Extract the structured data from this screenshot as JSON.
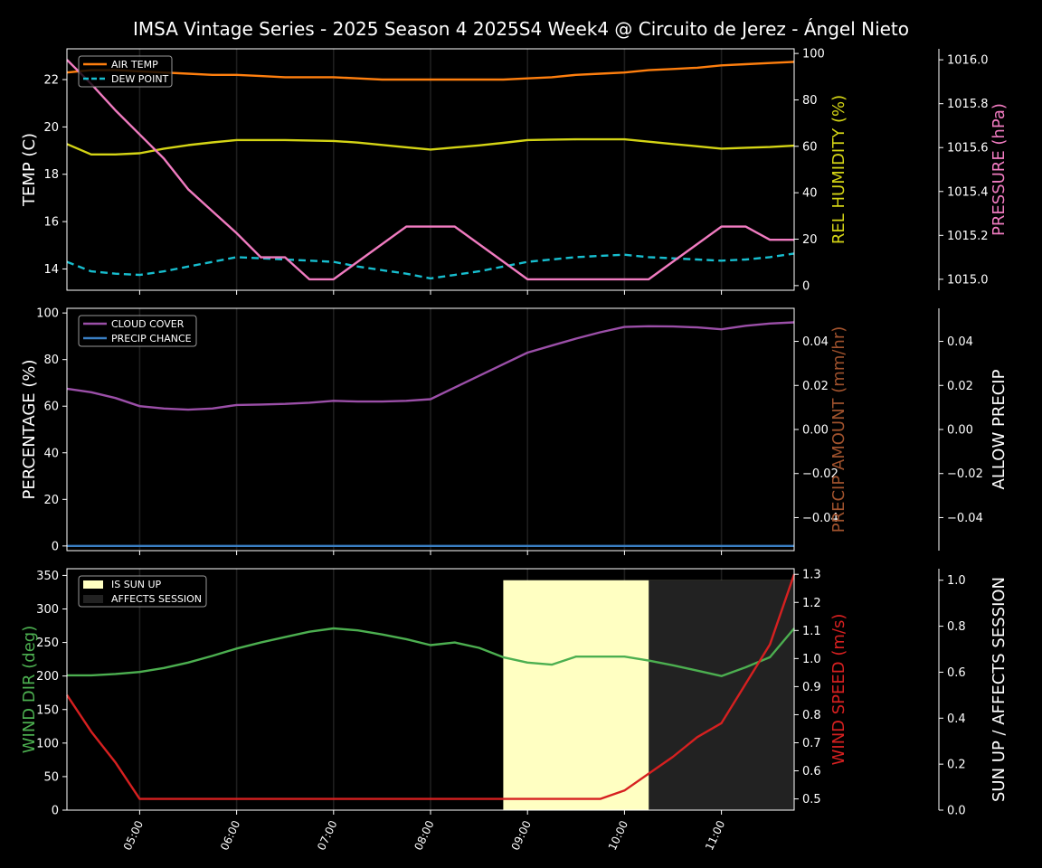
{
  "title": "IMSA Vintage Series - 2025 Season 4 2025S4 Week4 @ Circuito de Jerez - Ángel Nieto",
  "colors": {
    "air_temp": "#ff7f0e",
    "dew_point": "#17becf",
    "humidity": "#d4d415",
    "pressure": "#f07bc0",
    "cloud": "#9b4fa8",
    "precip_chance": "#3a7fc4",
    "precip_amount_label": "#a0522d",
    "wind_dir": "#4caf50",
    "wind_speed": "#d62020",
    "sun_up": "#ffffc2",
    "affects": "#222222"
  },
  "x_tick_labels": [
    "05:00",
    "06:00",
    "07:00",
    "08:00",
    "09:00",
    "10:00",
    "11:00"
  ],
  "chart_data": [
    {
      "type": "line",
      "panel": "temperature",
      "title": "IMSA Vintage Series - 2025 Season 4 2025S4 Week4 @ Circuito de Jerez - Ángel Nieto",
      "x": [
        4.25,
        4.5,
        4.75,
        5.0,
        5.25,
        5.5,
        5.75,
        6.0,
        6.25,
        6.5,
        6.75,
        7.0,
        7.25,
        7.5,
        7.75,
        8.0,
        8.25,
        8.5,
        8.75,
        9.0,
        9.25,
        9.5,
        9.75,
        10.0,
        10.25,
        10.5,
        10.75,
        11.0,
        11.25,
        11.5,
        11.75
      ],
      "xlim": [
        4.25,
        11.75
      ],
      "left_axis": {
        "label": "TEMP (C)",
        "ylim": [
          13.1,
          23.3
        ],
        "ticks": [
          14,
          16,
          18,
          20,
          22
        ]
      },
      "right_axis": {
        "label": "REL HUMIDITY (%)",
        "ylim": [
          -2,
          102
        ],
        "ticks": [
          0,
          20,
          40,
          60,
          80,
          100
        ]
      },
      "far_axis": {
        "label": "PRESSURE (hPa)",
        "ylim": [
          1014.95,
          1016.05
        ],
        "ticks": [
          1015.0,
          1015.2,
          1015.4,
          1015.6,
          1015.8,
          1016.0
        ],
        "tick_labels": [
          "1015.0",
          "1015.2",
          "1015.4",
          "1015.6",
          "1015.8",
          "1016.0"
        ]
      },
      "legend": [
        "AIR TEMP",
        "DEW POINT"
      ],
      "series": [
        {
          "name": "AIR TEMP",
          "axis": "left",
          "values": [
            22.3,
            22.4,
            22.4,
            22.35,
            22.3,
            22.25,
            22.2,
            22.2,
            22.15,
            22.1,
            22.1,
            22.1,
            22.05,
            22.0,
            22.0,
            22.0,
            22.0,
            22.0,
            22.0,
            22.05,
            22.1,
            22.2,
            22.25,
            22.3,
            22.4,
            22.45,
            22.5,
            22.6,
            22.65,
            22.7,
            22.75
          ]
        },
        {
          "name": "DEW POINT",
          "axis": "left",
          "values": [
            14.3,
            13.9,
            13.8,
            13.75,
            13.9,
            14.1,
            14.3,
            14.5,
            14.45,
            14.4,
            14.35,
            14.3,
            14.1,
            13.95,
            13.8,
            13.6,
            13.75,
            13.9,
            14.1,
            14.3,
            14.4,
            14.5,
            14.55,
            14.6,
            14.5,
            14.45,
            14.4,
            14.35,
            14.4,
            14.5,
            14.65
          ]
        },
        {
          "name": "REL HUMIDITY",
          "axis": "right",
          "values": [
            61,
            56.5,
            56.5,
            57,
            59,
            60.5,
            61.7,
            62.7,
            62.7,
            62.7,
            62.5,
            62.3,
            61.6,
            60.6,
            59.6,
            58.6,
            59.5,
            60.4,
            61.5,
            62.7,
            62.9,
            63,
            63,
            63,
            62,
            61,
            60,
            59,
            59.4,
            59.7,
            60.3
          ]
        },
        {
          "name": "PRESSURE",
          "axis": "far",
          "values": [
            1016.0,
            1015.89,
            1015.77,
            1015.66,
            1015.55,
            1015.41,
            1015.31,
            1015.21,
            1015.1,
            1015.1,
            1015.0,
            1015.0,
            1015.08,
            1015.16,
            1015.24,
            1015.24,
            1015.24,
            1015.16,
            1015.08,
            1015.0,
            1015.0,
            1015.0,
            1015.0,
            1015.0,
            1015.0,
            1015.08,
            1015.16,
            1015.24,
            1015.24,
            1015.18,
            1015.18
          ]
        }
      ]
    },
    {
      "type": "line",
      "panel": "clouds",
      "x": [
        4.25,
        4.5,
        4.75,
        5.0,
        5.25,
        5.5,
        5.75,
        6.0,
        6.25,
        6.5,
        6.75,
        7.0,
        7.25,
        7.5,
        7.75,
        8.0,
        8.25,
        8.5,
        8.75,
        9.0,
        9.25,
        9.5,
        9.75,
        10.0,
        10.25,
        10.5,
        10.75,
        11.0,
        11.25,
        11.5,
        11.75
      ],
      "xlim": [
        4.25,
        11.75
      ],
      "left_axis": {
        "label": "PERCENTAGE (%)",
        "ylim": [
          -2,
          102
        ],
        "ticks": [
          0,
          20,
          40,
          60,
          80,
          100
        ]
      },
      "right_axis": {
        "label": "PRECIP AMOUNT (mm/hr)",
        "ylim": [
          -0.055,
          0.055
        ],
        "ticks": [
          -0.04,
          -0.02,
          0.0,
          0.02,
          0.04
        ],
        "tick_labels": [
          "−0.04",
          "−0.02",
          "0.00",
          "0.02",
          "0.04"
        ]
      },
      "far_axis": {
        "label": "ALLOW PRECIP",
        "ylim": [
          -0.055,
          0.055
        ],
        "ticks": [
          -0.04,
          -0.02,
          0.0,
          0.02,
          0.04
        ],
        "tick_labels": [
          "−0.04",
          "−0.02",
          "0.00",
          "0.02",
          "0.04"
        ]
      },
      "legend": [
        "CLOUD COVER",
        "PRECIP CHANCE"
      ],
      "series": [
        {
          "name": "CLOUD COVER",
          "axis": "left",
          "values": [
            67.5,
            66,
            63.5,
            60,
            59,
            58.5,
            59,
            60.5,
            60.7,
            61,
            61.5,
            62.3,
            62,
            62,
            62.3,
            63,
            68,
            73,
            78,
            83,
            86,
            89,
            91.7,
            94,
            94.3,
            94.2,
            93.8,
            93,
            94.5,
            95.5,
            96
          ]
        },
        {
          "name": "PRECIP CHANCE",
          "axis": "left",
          "values": [
            0,
            0,
            0,
            0,
            0,
            0,
            0,
            0,
            0,
            0,
            0,
            0,
            0,
            0,
            0,
            0,
            0,
            0,
            0,
            0,
            0,
            0,
            0,
            0,
            0,
            0,
            0,
            0,
            0,
            0,
            0
          ]
        }
      ]
    },
    {
      "type": "line",
      "panel": "wind",
      "x": [
        4.25,
        4.5,
        4.75,
        5.0,
        5.25,
        5.5,
        5.75,
        6.0,
        6.25,
        6.5,
        6.75,
        7.0,
        7.25,
        7.5,
        7.75,
        8.0,
        8.25,
        8.5,
        8.75,
        9.0,
        9.25,
        9.5,
        9.75,
        10.0,
        10.25,
        10.5,
        10.75,
        11.0,
        11.25,
        11.5,
        11.75
      ],
      "xlim": [
        4.25,
        11.75
      ],
      "left_axis": {
        "label": "WIND DIR (deg)",
        "ylim": [
          0,
          360
        ],
        "ticks": [
          0,
          50,
          100,
          150,
          200,
          250,
          300,
          350
        ]
      },
      "right_axis": {
        "label": "WIND SPEED (m/s)",
        "ylim": [
          0.46,
          1.32
        ],
        "ticks": [
          0.5,
          0.6,
          0.7,
          0.8,
          0.9,
          1.0,
          1.1,
          1.2,
          1.3
        ],
        "tick_labels": [
          "0.5",
          "0.6",
          "0.7",
          "0.8",
          "0.9",
          "1.0",
          "1.1",
          "1.2",
          "1.3"
        ]
      },
      "far_axis": {
        "label": "SUN UP / AFFECTS SESSION",
        "ylim": [
          0,
          1.05
        ],
        "ticks": [
          0.0,
          0.2,
          0.4,
          0.6,
          0.8,
          1.0
        ],
        "tick_labels": [
          "0.0",
          "0.2",
          "0.4",
          "0.6",
          "0.8",
          "1.0"
        ]
      },
      "legend": [
        "IS SUN UP",
        "AFFECTS SESSION"
      ],
      "series": [
        {
          "name": "WIND DIR",
          "axis": "left",
          "values": [
            201,
            201,
            203,
            206,
            212,
            220,
            230,
            241,
            250,
            258,
            266,
            271,
            268,
            262,
            255,
            246,
            250,
            242,
            228,
            220,
            217,
            229,
            229,
            229,
            223,
            216,
            208,
            200,
            213,
            228,
            271
          ]
        },
        {
          "name": "WIND SPEED",
          "axis": "right",
          "values": [
            0.87,
            0.74,
            0.63,
            0.5,
            0.5,
            0.5,
            0.5,
            0.5,
            0.5,
            0.5,
            0.5,
            0.5,
            0.5,
            0.5,
            0.5,
            0.5,
            0.5,
            0.5,
            0.5,
            0.5,
            0.5,
            0.5,
            0.5,
            0.53,
            0.59,
            0.65,
            0.72,
            0.77,
            0.91,
            1.05,
            1.3
          ]
        }
      ],
      "areas": [
        {
          "name": "IS SUN UP",
          "axis": "far",
          "x_start": 8.75,
          "x_end": 11.75,
          "value": 1.0
        },
        {
          "name": "AFFECTS SESSION",
          "axis": "far",
          "x_start": 10.25,
          "x_end": 11.75,
          "value": 1.0
        }
      ]
    }
  ]
}
